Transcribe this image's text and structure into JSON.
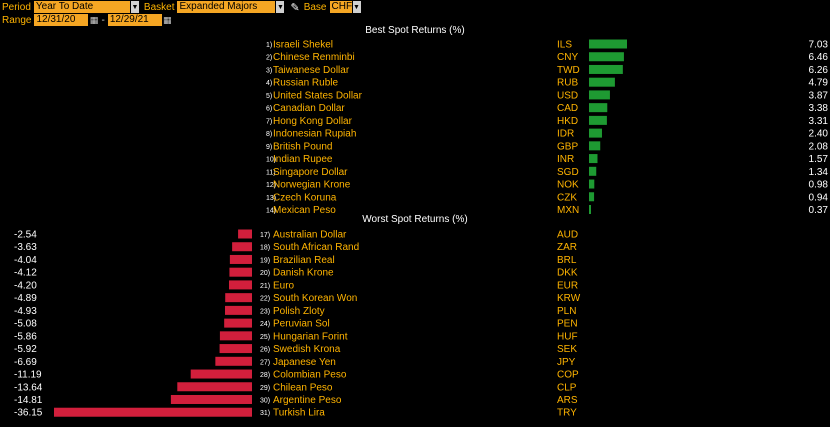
{
  "toolbar": {
    "period_label": "Period",
    "period_value": "Year To Date",
    "basket_label": "Basket",
    "basket_value": "Expanded Majors",
    "base_label": "Base",
    "base_value": "CHF",
    "range_label": "Range",
    "range_start": "12/31/20",
    "range_separator": "-",
    "range_end": "12/29/21",
    "dropdown_icon": "chevron-down-icon",
    "calendar_icon": "calendar-icon",
    "edit_icon": "pencil-icon"
  },
  "colors": {
    "background": "#000000",
    "label": "#ffb400",
    "field": "#f5a623",
    "positive_bar": "#1e9a32",
    "negative_bar": "#d21f3c"
  },
  "chart_data": [
    {
      "type": "bar",
      "title": "Best Spot Returns (%)",
      "orientation": "horizontal",
      "ranks": [
        "1)",
        "2)",
        "3)",
        "4)",
        "5)",
        "6)",
        "7)",
        "8)",
        "9)",
        "10)",
        "11)",
        "12)",
        "13)",
        "14)"
      ],
      "categories": [
        "Israeli Shekel",
        "Chinese Renminbi",
        "Taiwanese Dollar",
        "Russian Ruble",
        "United States Dollar",
        "Canadian Dollar",
        "Hong Kong Dollar",
        "Indonesian Rupiah",
        "British Pound",
        "Indian Rupee",
        "Singapore Dollar",
        "Norwegian Krone",
        "Czech Koruna",
        "Mexican Peso"
      ],
      "codes": [
        "ILS",
        "CNY",
        "TWD",
        "RUB",
        "USD",
        "CAD",
        "HKD",
        "IDR",
        "GBP",
        "INR",
        "SGD",
        "NOK",
        "CZK",
        "MXN"
      ],
      "values": [
        7.03,
        6.46,
        6.26,
        4.79,
        3.87,
        3.38,
        3.31,
        2.4,
        2.08,
        1.57,
        1.34,
        0.98,
        0.94,
        0.37
      ],
      "labels": [
        "7.03",
        "6.46",
        "6.26",
        "4.79",
        "3.87",
        "3.38",
        "3.31",
        "2.40",
        "2.08",
        "1.57",
        "1.34",
        "0.98",
        "0.94",
        "0.37"
      ],
      "value_max": 36.15
    },
    {
      "type": "bar",
      "title": "Worst Spot Returns (%)",
      "orientation": "horizontal",
      "ranks": [
        "17)",
        "18)",
        "19)",
        "20)",
        "21)",
        "22)",
        "23)",
        "24)",
        "25)",
        "26)",
        "27)",
        "28)",
        "29)",
        "30)",
        "31)"
      ],
      "categories": [
        "Australian Dollar",
        "South African Rand",
        "Brazilian Real",
        "Danish Krone",
        "Euro",
        "South Korean Won",
        "Polish Zloty",
        "Peruvian Sol",
        "Hungarian Forint",
        "Swedish Krona",
        "Japanese Yen",
        "Colombian Peso",
        "Chilean Peso",
        "Argentine Peso",
        "Turkish Lira"
      ],
      "codes": [
        "AUD",
        "ZAR",
        "BRL",
        "DKK",
        "EUR",
        "KRW",
        "PLN",
        "PEN",
        "HUF",
        "SEK",
        "JPY",
        "COP",
        "CLP",
        "ARS",
        "TRY"
      ],
      "values": [
        -2.54,
        -3.63,
        -4.04,
        -4.12,
        -4.2,
        -4.89,
        -4.93,
        -5.08,
        -5.86,
        -5.92,
        -6.69,
        -11.19,
        -13.64,
        -14.81,
        -36.15
      ],
      "labels": [
        "-2.54",
        "-3.63",
        "-4.04",
        "-4.12",
        "-4.20",
        "-4.89",
        "-4.93",
        "-5.08",
        "-5.86",
        "-5.92",
        "-6.69",
        "-11.19",
        "-13.64",
        "-14.81",
        "-36.15"
      ],
      "value_max": 36.15
    }
  ]
}
